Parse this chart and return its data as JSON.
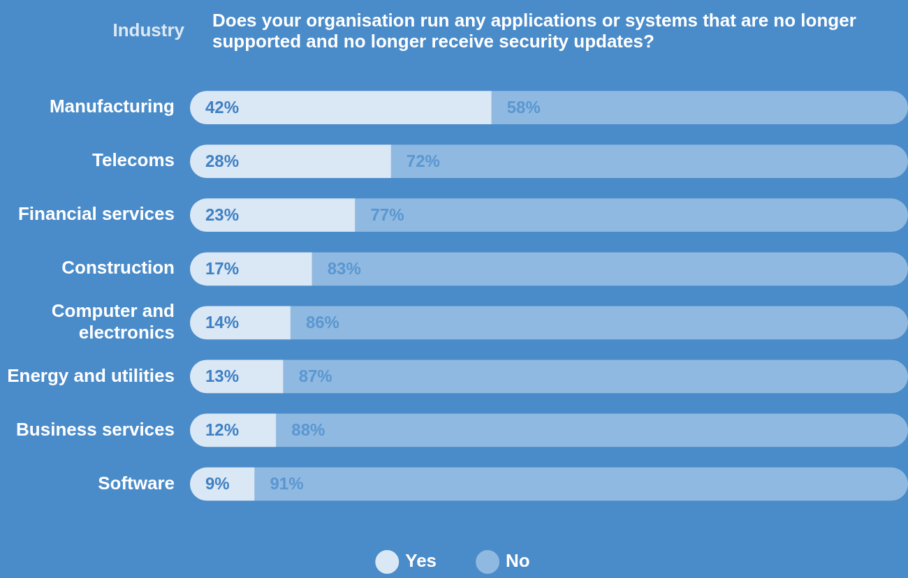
{
  "chart_data": {
    "type": "bar",
    "orientation": "horizontal",
    "stacked": true,
    "title": "Does your organisation run any applications or systems that are no longer supported and no longer receive security updates?",
    "ylabel": "Industry",
    "categories": [
      "Manufacturing",
      "Telecoms",
      "Financial services",
      "Construction",
      "Computer and electronics",
      "Energy and utilities",
      "Business services",
      "Software"
    ],
    "series": [
      {
        "name": "Yes",
        "color": "#dae7f4",
        "values": [
          42,
          28,
          23,
          17,
          14,
          13,
          12,
          9
        ],
        "value_labels": [
          "42%",
          "28%",
          "23%",
          "17%",
          "14%",
          "13%",
          "12%",
          "9%"
        ]
      },
      {
        "name": "No",
        "color": "#8fb9e0",
        "values": [
          58,
          72,
          77,
          83,
          86,
          87,
          88,
          91
        ],
        "value_labels": [
          "58%",
          "72%",
          "77%",
          "83%",
          "86%",
          "87%",
          "88%",
          "91%"
        ]
      }
    ],
    "legend": "bottom",
    "grid": false,
    "tick_labels": "y"
  }
}
